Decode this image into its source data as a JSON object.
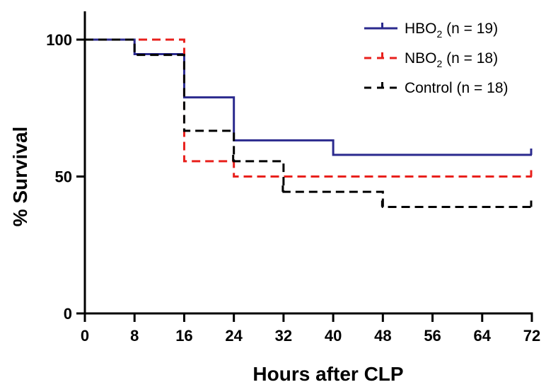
{
  "chart_data": {
    "type": "line",
    "step": true,
    "title": "",
    "xlabel": "Hours after CLP",
    "ylabel": "% Survival",
    "xlim": [
      0,
      72
    ],
    "ylim": [
      0,
      100
    ],
    "xticks": [
      0,
      8,
      16,
      24,
      32,
      40,
      48,
      56,
      64,
      72
    ],
    "yticks": [
      0,
      50,
      100
    ],
    "grid": false,
    "legend_position": "top-right",
    "series": [
      {
        "key": "hbo2",
        "base": "HBO",
        "sub": "2",
        "suffix": " (n = 19)",
        "color": "#2b2a8e",
        "dash": "solid",
        "points": [
          [
            0,
            100
          ],
          [
            8,
            94.7
          ],
          [
            16,
            78.9
          ],
          [
            24,
            63.2
          ],
          [
            40,
            57.9
          ],
          [
            72,
            57.9
          ]
        ],
        "censored": [
          [
            72,
            57.9
          ]
        ]
      },
      {
        "key": "nbo2",
        "base": "NBO",
        "sub": "2",
        "suffix": " (n = 18)",
        "color": "#e8201c",
        "dash": "dashed",
        "points": [
          [
            0,
            100
          ],
          [
            16,
            55.6
          ],
          [
            24,
            50
          ],
          [
            72,
            50
          ]
        ],
        "censored": [
          [
            72,
            50
          ]
        ]
      },
      {
        "key": "control",
        "base": "Control",
        "sub": "",
        "suffix": " (n = 18)",
        "color": "#000000",
        "dash": "dashed",
        "points": [
          [
            0,
            100
          ],
          [
            8,
            94.4
          ],
          [
            16,
            66.7
          ],
          [
            24,
            55.6
          ],
          [
            32,
            44.4
          ],
          [
            48,
            38.9
          ],
          [
            72,
            38.9
          ]
        ],
        "censored": [
          [
            24,
            55.6
          ],
          [
            32,
            44.4
          ],
          [
            48,
            38.9
          ],
          [
            72,
            38.9
          ]
        ]
      }
    ]
  }
}
